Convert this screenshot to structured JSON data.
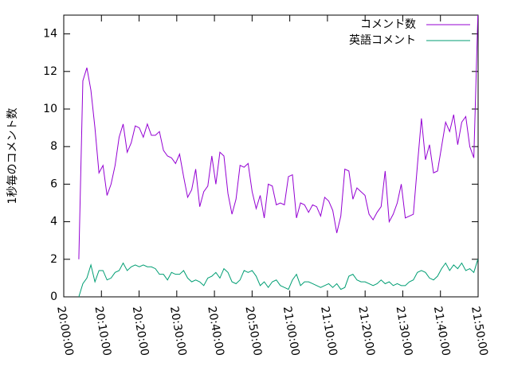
{
  "chart_data": {
    "type": "line",
    "ylabel": "1秒毎のコメント数",
    "x": [
      4,
      5.07,
      6.14,
      7.21,
      8.28,
      9.35,
      10.42,
      11.49,
      12.56,
      13.63,
      14.7,
      15.77,
      16.84,
      17.91,
      18.98,
      20.05,
      21.12,
      22.19,
      23.26,
      24.33,
      25.4,
      26.47,
      27.54,
      28.61,
      29.68,
      30.75,
      31.82,
      32.89,
      33.96,
      35.03,
      36.1,
      37.17,
      38.24,
      39.31,
      40.38,
      41.45,
      42.52,
      43.59,
      44.66,
      45.73,
      46.8,
      47.87,
      48.94,
      50.01,
      51.08,
      52.15,
      53.22,
      54.29,
      55.36,
      56.43,
      57.5,
      58.57,
      59.64,
      60.71,
      61.78,
      62.85,
      63.92,
      64.99,
      66.06,
      67.13,
      68.2,
      69.27,
      70.34,
      71.41,
      72.48,
      73.55,
      74.62,
      75.69,
      76.76,
      77.83,
      78.9,
      79.97,
      81.04,
      82.11,
      83.18,
      84.25,
      85.32,
      86.39,
      87.46,
      88.53,
      89.6,
      90.67,
      91.74,
      92.81,
      93.88,
      94.95,
      96.02,
      97.09,
      98.16,
      99.23,
      100.3,
      101.37,
      102.44,
      103.51,
      104.58,
      105.65,
      106.72,
      107.79,
      108.86,
      109.93
    ],
    "series": [
      {
        "name": "コメント数",
        "color": "#9400d3",
        "values": [
          2,
          11.5,
          12.2,
          11,
          9,
          6.6,
          7,
          5.4,
          6,
          7,
          8.5,
          9.2,
          7.7,
          8.2,
          9.1,
          9,
          8.5,
          9.2,
          8.6,
          8.6,
          8.8,
          7.8,
          7.5,
          7.4,
          7.1,
          7.6,
          6.4,
          5.3,
          5.7,
          6.8,
          4.8,
          5.6,
          5.9,
          7.5,
          6,
          7.7,
          7.5,
          5.5,
          4.4,
          5.2,
          7,
          6.9,
          7.1,
          5.6,
          4.7,
          5.4,
          4.2,
          6,
          5.9,
          4.9,
          5,
          4.9,
          6.4,
          6.5,
          4.2,
          5,
          4.9,
          4.5,
          4.9,
          4.8,
          4.3,
          5.3,
          5.1,
          4.6,
          3.4,
          4.3,
          6.8,
          6.7,
          5.2,
          5.8,
          5.6,
          5.4,
          4.4,
          4.1,
          4.5,
          4.8,
          6.7,
          4,
          4.4,
          5,
          6,
          4.2,
          4.3,
          4.4,
          7,
          9.5,
          7.3,
          8.1,
          6.6,
          6.7,
          8,
          9.3,
          8.8,
          9.7,
          8.1,
          9.3,
          9.6,
          8,
          7.4,
          15
        ]
      },
      {
        "name": "英語コメント",
        "color": "#009e73",
        "values": [
          0,
          0.7,
          1,
          1.7,
          0.8,
          1.4,
          1.4,
          0.9,
          1,
          1.3,
          1.4,
          1.8,
          1.4,
          1.6,
          1.7,
          1.6,
          1.7,
          1.6,
          1.6,
          1.5,
          1.2,
          1.2,
          0.9,
          1.3,
          1.2,
          1.2,
          1.4,
          1,
          0.8,
          0.9,
          0.8,
          0.6,
          1,
          1.1,
          1.3,
          1,
          1.5,
          1.3,
          0.8,
          0.7,
          0.9,
          1.4,
          1.3,
          1.4,
          1.1,
          0.6,
          0.8,
          0.5,
          0.8,
          0.9,
          0.6,
          0.5,
          0.4,
          0.9,
          1.2,
          0.6,
          0.8,
          0.8,
          0.7,
          0.6,
          0.5,
          0.6,
          0.7,
          0.5,
          0.7,
          0.4,
          0.5,
          1.1,
          1.2,
          0.9,
          0.8,
          0.8,
          0.7,
          0.6,
          0.7,
          0.9,
          0.7,
          0.8,
          0.6,
          0.7,
          0.6,
          0.6,
          0.8,
          0.9,
          1.3,
          1.4,
          1.3,
          1,
          0.9,
          1.1,
          1.5,
          1.8,
          1.4,
          1.7,
          1.5,
          1.8,
          1.4,
          1.5,
          1.3,
          2
        ]
      }
    ],
    "xlim": [
      0,
      110
    ],
    "xticks": [
      {
        "value": 0,
        "label": "20:00:00"
      },
      {
        "value": 10,
        "label": "20:10:00"
      },
      {
        "value": 20,
        "label": "20:20:00"
      },
      {
        "value": 30,
        "label": "20:30:00"
      },
      {
        "value": 40,
        "label": "20:40:00"
      },
      {
        "value": 50,
        "label": "20:50:00"
      },
      {
        "value": 60,
        "label": "21:00:00"
      },
      {
        "value": 70,
        "label": "21:10:00"
      },
      {
        "value": 80,
        "label": "21:20:00"
      },
      {
        "value": 90,
        "label": "21:30:00"
      },
      {
        "value": 100,
        "label": "21:40:00"
      },
      {
        "value": 110,
        "label": "21:50:00"
      }
    ],
    "ylim": [
      0,
      15
    ],
    "yticks": [
      0,
      2,
      4,
      6,
      8,
      10,
      12,
      14
    ],
    "legend": "top-right"
  }
}
